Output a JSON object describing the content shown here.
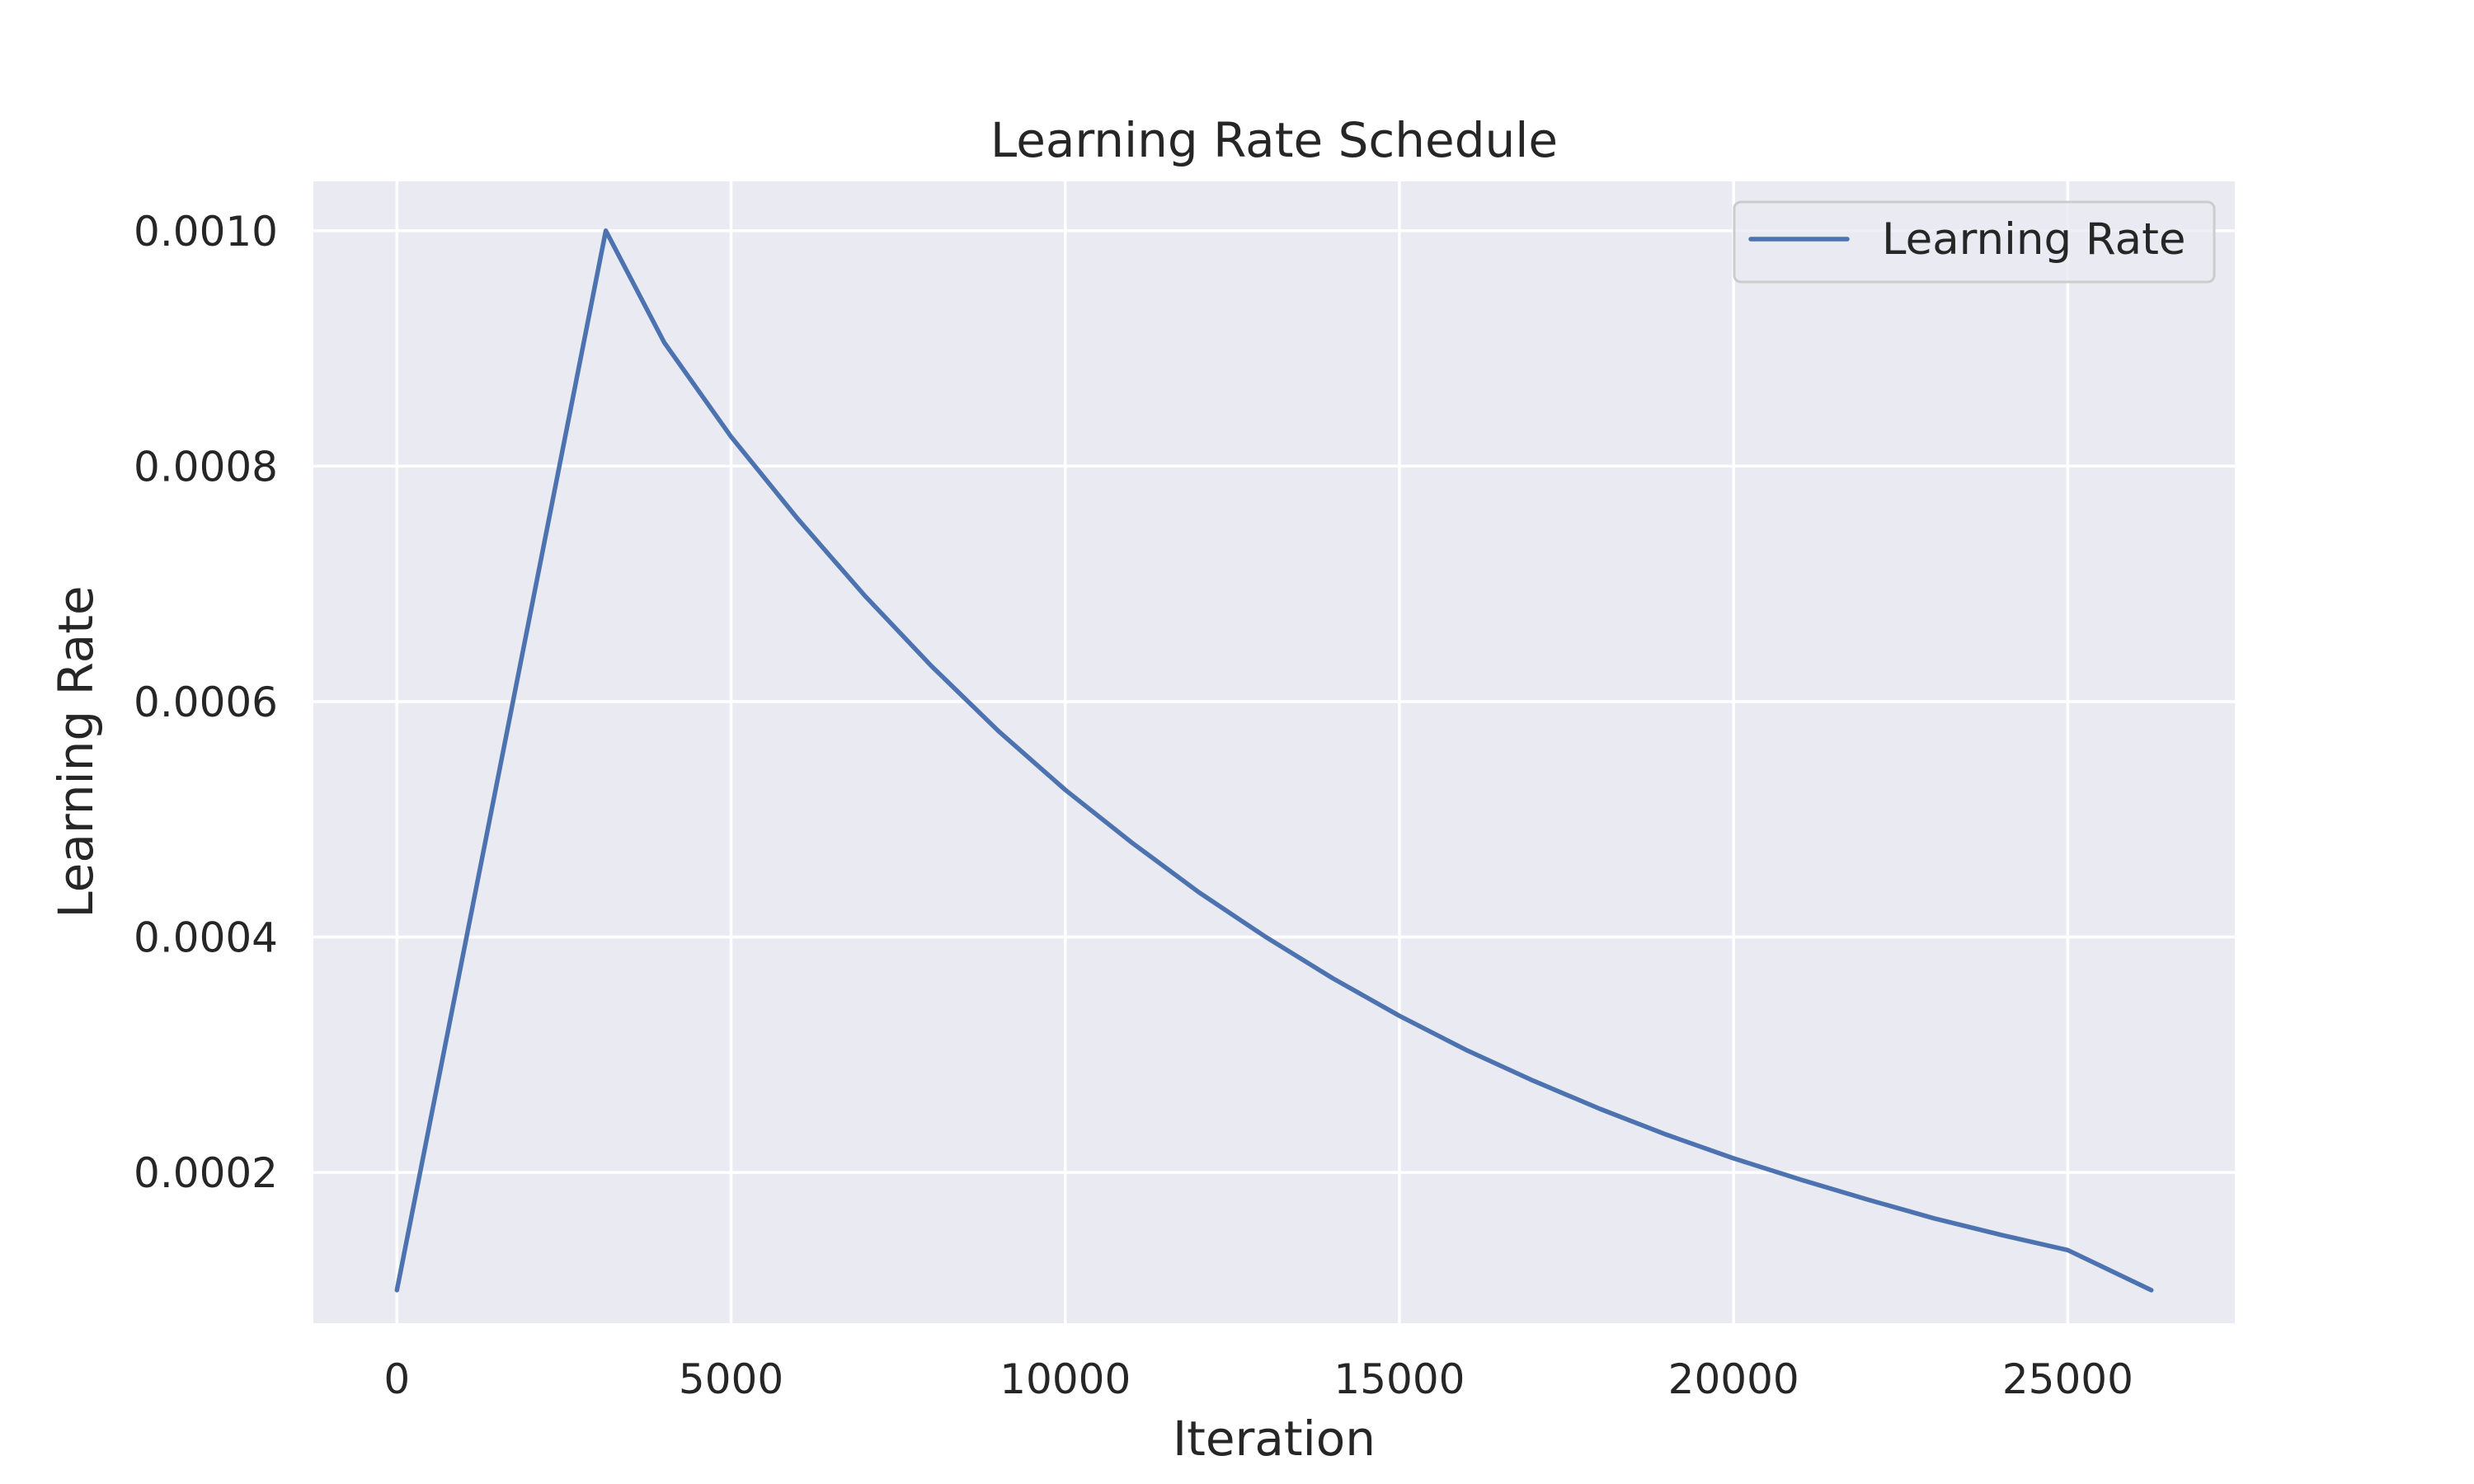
{
  "chart_data": {
    "type": "line",
    "title": "Learning Rate Schedule",
    "xlabel": "Iteration",
    "ylabel": "Learning Rate",
    "xlim": [
      -1250,
      27500
    ],
    "ylim": [
      7.19e-05,
      0.0010419
    ],
    "x_ticks": [
      0,
      5000,
      10000,
      15000,
      20000,
      25000
    ],
    "x_tick_labels": [
      "0",
      "5000",
      "10000",
      "15000",
      "20000",
      "25000"
    ],
    "y_ticks": [
      0.0002,
      0.0004,
      0.0006,
      0.0008,
      0.001
    ],
    "y_tick_labels": [
      "0.0002",
      "0.0004",
      "0.0006",
      "0.0008",
      "0.0010"
    ],
    "grid": true,
    "legend_position": "top-right",
    "series": [
      {
        "name": "Learning Rate",
        "color": "#4c72b0",
        "x": [
          0,
          3125,
          4000,
          5000,
          6000,
          7000,
          8000,
          9000,
          10000,
          11000,
          12000,
          13000,
          14000,
          15000,
          16000,
          17000,
          18000,
          19000,
          20000,
          21000,
          22000,
          23000,
          24000,
          25000,
          26250
        ],
        "y": [
          0.0001,
          0.001,
          0.000905,
          0.000825,
          0.000755,
          0.00069,
          0.00063,
          0.000575,
          0.000525,
          0.00048,
          0.000438,
          0.0004,
          0.000365,
          0.000333,
          0.000304,
          0.000278,
          0.000254,
          0.000232,
          0.000212,
          0.000194,
          0.000177,
          0.000161,
          0.000147,
          0.000134,
          0.0001
        ]
      }
    ]
  }
}
